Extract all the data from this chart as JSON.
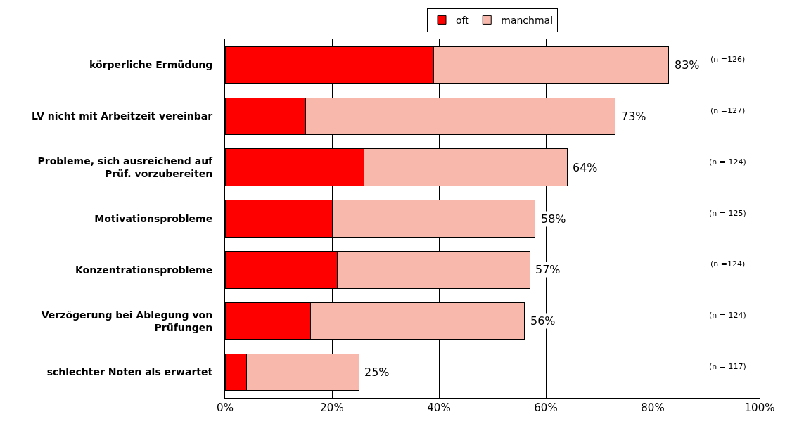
{
  "chart_data": {
    "type": "bar",
    "orientation": "horizontal",
    "stacked": true,
    "categories": [
      "körperliche Ermüdung",
      "LV nicht mit Arbeitzeit vereinbar",
      "Probleme, sich ausreichend auf Prüf. vorzubereiten",
      "Motivationsprobleme",
      "Konzentrationsprobleme",
      "Verzögerung bei Ablegung von Prüfungen",
      "schlechter Noten als erwartet"
    ],
    "series": [
      {
        "name": "oft",
        "color": "#ff0000",
        "values": [
          39,
          15,
          26,
          20,
          21,
          16,
          4
        ]
      },
      {
        "name": "manchmal",
        "color": "#f8b8ac",
        "values": [
          44,
          58,
          38,
          38,
          36,
          40,
          21
        ]
      }
    ],
    "totals": [
      "83%",
      "73%",
      "64%",
      "58%",
      "57%",
      "56%",
      "25%"
    ],
    "annotations": [
      "(n =126)",
      "(n =127)",
      "(n = 124)",
      "(n = 125)",
      "(n =124)",
      "(n = 124)",
      "(n = 117)"
    ],
    "xlim": [
      0,
      100
    ],
    "xticks": [
      {
        "value": 0,
        "label": "0%"
      },
      {
        "value": 20,
        "label": "20%"
      },
      {
        "value": 40,
        "label": "40%"
      },
      {
        "value": 60,
        "label": "60%"
      },
      {
        "value": 80,
        "label": "80%"
      },
      {
        "value": 100,
        "label": "100%"
      }
    ],
    "grid": "x",
    "legend": "top"
  }
}
